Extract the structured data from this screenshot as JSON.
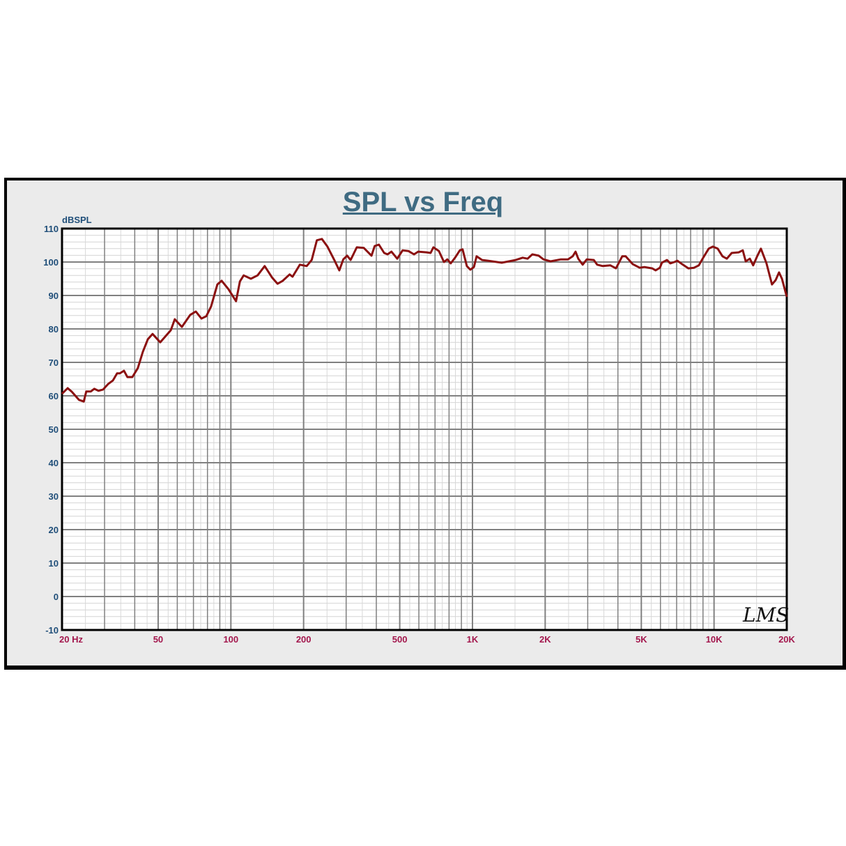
{
  "chart_data": {
    "type": "line",
    "title": "SPL vs Freq",
    "ylabel": "dBSPL",
    "xlabel": "",
    "xscale": "log",
    "xlim": [
      20,
      20000
    ],
    "ylim": [
      -10,
      110
    ],
    "grid": true,
    "y_ticks": [
      "110",
      "100",
      "90",
      "80",
      "70",
      "60",
      "50",
      "40",
      "30",
      "20",
      "10",
      "0",
      "-10"
    ],
    "x_ticks": [
      {
        "value": 20,
        "label": "20  Hz"
      },
      {
        "value": 50,
        "label": "50"
      },
      {
        "value": 100,
        "label": "100"
      },
      {
        "value": 200,
        "label": "200"
      },
      {
        "value": 500,
        "label": "500"
      },
      {
        "value": 1000,
        "label": "1K"
      },
      {
        "value": 2000,
        "label": "2K"
      },
      {
        "value": 5000,
        "label": "5K"
      },
      {
        "value": 10000,
        "label": "10K"
      },
      {
        "value": 20000,
        "label": "20K"
      }
    ],
    "watermark": "LMS",
    "line_color": "#8b1010",
    "series": [
      {
        "x": [
          20,
          21.1,
          21.9,
          23.5,
          24.6,
          25.2,
          26.3,
          27.2,
          28.3,
          29.6,
          31,
          32.5,
          33.8,
          34.7,
          36.1,
          37.3,
          39.1,
          41.2,
          43.2,
          45.3,
          47.4,
          51,
          56.4,
          58.6,
          62.7,
          67.9,
          71.6,
          75.5,
          79.1,
          82.8,
          87.9,
          91.6,
          97.7,
          105,
          109,
          113,
          121,
          129,
          138,
          148,
          156,
          164,
          175,
          180,
          193,
          206,
          216,
          227,
          238,
          251,
          268,
          281,
          292,
          303,
          313,
          332,
          355,
          382,
          394,
          410,
          431,
          445,
          462,
          488,
          514,
          543,
          573,
          596,
          646,
          671,
          689,
          726,
          762,
          787,
          813,
          847,
          887,
          910,
          948,
          980,
          1014,
          1040,
          1096,
          1158,
          1322,
          1510,
          1614,
          1690,
          1770,
          1880,
          1968,
          2104,
          2323,
          2484,
          2600,
          2672,
          2742,
          2858,
          2972,
          3178,
          3282,
          3460,
          3724,
          3926,
          4168,
          4306,
          4602,
          4920,
          5152,
          5546,
          5728,
          5970,
          6082,
          6384,
          6592,
          6856,
          7048,
          7430,
          7834,
          8260,
          8650,
          9058,
          9506,
          9886,
          10352,
          10840,
          11298,
          11832,
          12648,
          13154,
          13522,
          14062,
          14522,
          15126,
          15632,
          16482,
          17378,
          17990,
          18576,
          19098,
          20000
        ],
        "y": [
          60.6,
          62.3,
          61.3,
          58.8,
          58.3,
          61.3,
          61.3,
          62.1,
          61.5,
          61.9,
          63.5,
          64.6,
          66.7,
          66.7,
          67.5,
          65.6,
          65.6,
          68.3,
          73.1,
          76.9,
          78.5,
          76,
          79.6,
          82.9,
          80.6,
          84.2,
          85.2,
          83.1,
          83.8,
          86.7,
          93.3,
          94.4,
          91.9,
          88.3,
          94.2,
          96,
          95,
          96,
          98.8,
          95.4,
          93.5,
          94.4,
          96.3,
          95.6,
          99.2,
          98.8,
          100.6,
          106.5,
          106.9,
          104.6,
          100.6,
          97.5,
          100.8,
          101.9,
          100.6,
          104.4,
          104.2,
          101.9,
          104.8,
          105.2,
          102.7,
          102.3,
          103.1,
          101,
          103.5,
          103.3,
          102.3,
          103.1,
          102.9,
          102.7,
          104.4,
          103.3,
          100,
          100.8,
          99.6,
          101.3,
          103.5,
          103.8,
          98.8,
          97.7,
          98.5,
          101.7,
          100.6,
          100.4,
          99.8,
          100.6,
          101.3,
          101,
          102.3,
          101.9,
          100.8,
          100.2,
          100.8,
          100.8,
          101.7,
          103.1,
          101,
          99.2,
          100.8,
          100.6,
          99.2,
          98.8,
          99,
          98.1,
          101.7,
          101.7,
          99.4,
          98.3,
          98.5,
          98.1,
          97.5,
          98.3,
          99.8,
          100.6,
          99.6,
          100,
          100.4,
          99.2,
          98.1,
          98.3,
          99,
          101.5,
          104,
          104.6,
          104,
          101.7,
          101,
          102.7,
          102.9,
          103.5,
          100.2,
          101,
          99,
          101.9,
          104,
          99.6,
          93.3,
          94.6,
          96.9,
          95,
          89.6
        ]
      }
    ]
  }
}
